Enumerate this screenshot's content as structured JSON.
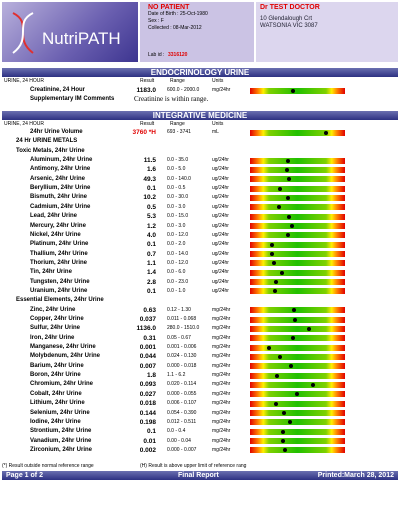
{
  "header": {
    "logo": "NutriPATH",
    "patient": "NO PATIENT",
    "dob": "Date of Birth :  25-Oct-1980",
    "sex": "Sex :  F",
    "collected": "Collected :  08-Mar-2012",
    "lab_id_label": "Lab id :",
    "lab_id": "3316120",
    "doctor": "Dr TEST DOCTOR",
    "address": [
      "10 Glendalough Crt",
      "WATSONIA VIC 3087"
    ]
  },
  "endocrinology": {
    "title": "ENDOCRINOLOGY URINE",
    "columns": [
      "URINE, 24 HOUR",
      "Result",
      "Range",
      "Units"
    ],
    "rows": [
      {
        "name": "Creatinine, 24 Hour",
        "result": "1183.0",
        "range": "600.0 - 2000.0",
        "units": "mg/24hr"
      }
    ],
    "comment": {
      "name": "Supplementary IM Comments",
      "text": "Creatinine is within range."
    }
  },
  "integrative": {
    "title": "INTEGRATIVE MEDICINE",
    "columns": [
      "URINE, 24 HOUR",
      "Result",
      "Range",
      "Units"
    ],
    "items": [
      {
        "name": "24hr Urine Volume",
        "result": "3760 *H",
        "range": "693 - 3741",
        "units": "mL",
        "color": "#e00000"
      },
      {
        "heading": "24 Hr URINE METALS"
      },
      {
        "heading": "Toxic Metals, 24hr Urine"
      },
      {
        "name": "Aluminum, 24hr Urine",
        "result": "11.5",
        "range": "0.0 - 35.0",
        "units": "ug/24hr"
      },
      {
        "name": "Antimony, 24hr Urine",
        "result": "1.6",
        "range": "0.0 - 5.0",
        "units": "ug/24hr"
      },
      {
        "name": "Arsenic, 24hr Urine",
        "result": "49.3",
        "range": "0.0 - 140.0",
        "units": "ug/24hr"
      },
      {
        "name": "Beryllium, 24hr Urine",
        "result": "0.1",
        "range": "0.0 - 0.5",
        "units": "ug/24hr"
      },
      {
        "name": "Bismuth, 24hr Urine",
        "result": "10.2",
        "range": "0.0 - 30.0",
        "units": "ug/24hr"
      },
      {
        "name": "Cadmium, 24hr Urine",
        "result": "0.5",
        "range": "0.0 - 3.0",
        "units": "ug/24hr"
      },
      {
        "name": "Lead, 24hr Urine",
        "result": "5.3",
        "range": "0.0 - 15.0",
        "units": "ug/24hr"
      },
      {
        "name": "Mercury, 24hr Urine",
        "result": "1.2",
        "range": "0.0 - 3.0",
        "units": "ug/24hr"
      },
      {
        "name": "Nickel, 24hr Urine",
        "result": "4.0",
        "range": "0.0 - 12.0",
        "units": "ug/24hr"
      },
      {
        "name": "Platinum, 24hr Urine",
        "result": "0.1",
        "range": "0.0 - 2.0",
        "units": "ug/24hr"
      },
      {
        "name": "Thallium, 24hr Urine",
        "result": "0.7",
        "range": "0.0 - 14.0",
        "units": "ug/24hr"
      },
      {
        "name": "Thorium, 24hr Urine",
        "result": "1.1",
        "range": "0.0 - 12.0",
        "units": "ug/24hr"
      },
      {
        "name": "Tin, 24hr Urine",
        "result": "1.4",
        "range": "0.0 - 6.0",
        "units": "ug/24hr"
      },
      {
        "name": "Tungsten, 24hr Urine",
        "result": "2.8",
        "range": "0.0 - 23.0",
        "units": "ug/24hr"
      },
      {
        "name": "Uranium, 24hr Urine",
        "result": "0.1",
        "range": "0.0 - 1.0",
        "units": "ug/24hr"
      },
      {
        "heading": "Essential Elements, 24hr Urine"
      },
      {
        "name": "Zinc, 24hr Urine",
        "result": "0.63",
        "range": "0.12 - 1.30",
        "units": "mg/24hr"
      },
      {
        "name": "Copper, 24hr Urine",
        "result": "0.037",
        "range": "0.011 - 0.068",
        "units": "mg/24hr"
      },
      {
        "name": "Sulfur, 24hr Urine",
        "result": "1136.0",
        "range": "280.0 - 1510.0",
        "units": "mg/24hr"
      },
      {
        "name": "Iron, 24hr Urine",
        "result": "0.31",
        "range": "0.05 - 0.67",
        "units": "mg/24hr"
      },
      {
        "name": "Manganese, 24hr Urine",
        "result": "0.001",
        "range": "0.001 - 0.006",
        "units": "mg/24hr"
      },
      {
        "name": "Molybdenum, 24hr Urine",
        "result": "0.044",
        "range": "0.024 - 0.130",
        "units": "mg/24hr"
      },
      {
        "name": "Barium, 24hr Urine",
        "result": "0.007",
        "range": "0.000 - 0.018",
        "units": "mg/24hr"
      },
      {
        "name": "Boron, 24hr Urine",
        "result": "1.8",
        "range": "1.1 - 6.2",
        "units": "mg/24hr"
      },
      {
        "name": "Chromium, 24hr Urine",
        "result": "0.093",
        "range": "0.020 - 0.114",
        "units": "mg/24hr"
      },
      {
        "name": "Cobalt, 24hr Urine",
        "result": "0.027",
        "range": "0.000 - 0.055",
        "units": "mg/24hr"
      },
      {
        "name": "Lithium, 24hr Urine",
        "result": "0.018",
        "range": "0.006 - 0.107",
        "units": "mg/24hr"
      },
      {
        "name": "Selenium, 24hr Urine",
        "result": "0.144",
        "range": "0.054 - 0.390",
        "units": "mg/24hr"
      },
      {
        "name": "Iodine, 24hr Urine",
        "result": "0.198",
        "range": "0.012 - 0.511",
        "units": "mg/24hr"
      },
      {
        "name": "Strontium, 24hr Urine",
        "result": "0.1",
        "range": "0.0 - 0.4",
        "units": "mg/24hr"
      },
      {
        "name": "Vanadium, 24hr Urine",
        "result": "0.01",
        "range": "0.00 - 0.04",
        "units": "mg/24hr"
      },
      {
        "name": "Zirconium, 24hr Urine",
        "result": "0.002",
        "range": "0.000 - 0.007",
        "units": "mg/24hr"
      }
    ]
  },
  "footer": {
    "note1": "(*) Result outside normal reference range",
    "note2": "(H) Result is above upper limit of reference rang",
    "page": "Page 1 of 2",
    "status": "Final Report",
    "printed": "Printed:March 28, 2012"
  }
}
